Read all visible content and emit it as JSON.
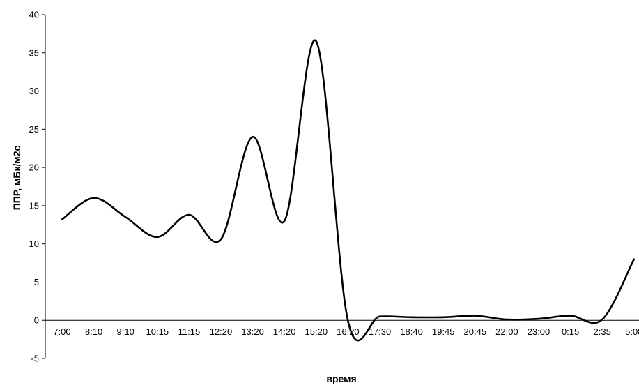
{
  "chart_data": {
    "type": "line",
    "title": "",
    "xlabel": "время",
    "ylabel": "ППР, мБк/м2с",
    "ylim": [
      -5,
      40
    ],
    "yticks": [
      -5,
      0,
      5,
      10,
      15,
      20,
      25,
      30,
      35,
      40
    ],
    "grid": false,
    "legend": "none",
    "line_color": "#000000",
    "categories": [
      "7:00",
      "8:10",
      "9:10",
      "10:15",
      "11:15",
      "12:20",
      "13:20",
      "14:20",
      "15:20",
      "16:20",
      "17:30",
      "18:40",
      "19:45",
      "20:45",
      "22:00",
      "23:00",
      "0:15",
      "2:35",
      "5:08"
    ],
    "series": [
      {
        "values": [
          13.2,
          16.0,
          13.5,
          10.9,
          13.8,
          10.6,
          24.0,
          13.0,
          36.5,
          -0.1,
          0.5,
          0.4,
          0.4,
          0.6,
          0.1,
          0.2,
          0.6,
          0.1,
          8.0
        ]
      }
    ]
  }
}
